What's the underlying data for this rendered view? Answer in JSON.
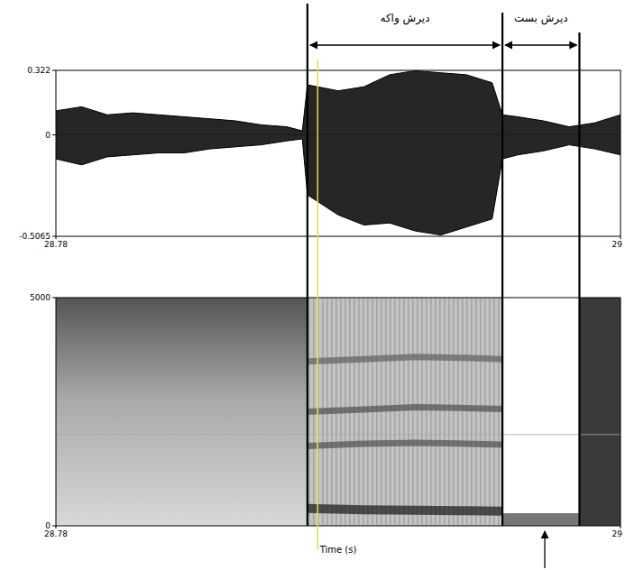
{
  "chart_data": [
    {
      "type": "waveform",
      "xlim": [
        28.78,
        29
      ],
      "xticks": [
        28.78,
        29
      ],
      "ylim": [
        -0.5065,
        0.322
      ],
      "yticks": [
        -0.5065,
        0,
        0.322
      ],
      "x": [
        28.78,
        28.79,
        28.8,
        28.81,
        28.82,
        28.83,
        28.84,
        28.85,
        28.86,
        28.87,
        28.876,
        28.878,
        28.89,
        28.9,
        28.91,
        28.92,
        28.93,
        28.94,
        28.95,
        28.954,
        28.96,
        28.97,
        28.98,
        28.99,
        29
      ],
      "series": [
        {
          "color": "#000000",
          "values": [
            0.12,
            0.14,
            0.1,
            0.11,
            0.1,
            0.09,
            0.08,
            0.07,
            0.05,
            0.04,
            0.02,
            0.25,
            0.22,
            0.24,
            0.3,
            0.32,
            0.31,
            0.3,
            0.26,
            0.1,
            0.09,
            0.07,
            0.04,
            0.06,
            0.1
          ]
        },
        {
          "color": "#000000",
          "values": [
            -0.12,
            -0.15,
            -0.11,
            -0.1,
            -0.09,
            -0.09,
            -0.07,
            -0.06,
            -0.05,
            -0.03,
            -0.02,
            -0.3,
            -0.4,
            -0.45,
            -0.44,
            -0.48,
            -0.5,
            -0.46,
            -0.42,
            -0.12,
            -0.1,
            -0.08,
            -0.05,
            -0.07,
            -0.1
          ]
        }
      ],
      "annotations": [
        {
          "text": "دیرش واکه",
          "x": [
            28.878,
            28.954
          ]
        },
        {
          "text": "دیرش بست",
          "x": [
            28.954,
            28.984
          ]
        }
      ],
      "cursor": {
        "x": 28.882,
        "color": "#e6e04a"
      }
    },
    {
      "type": "spectrogram",
      "x_label": "Time (s)",
      "xlim": [
        28.78,
        29
      ],
      "xticks": [
        28.78,
        29
      ],
      "ylim": [
        0,
        5000
      ],
      "yticks": [
        0,
        5000
      ],
      "x": [
        28.878,
        28.9,
        28.92,
        28.94,
        28.954
      ],
      "series": [
        {
          "color": "#222222",
          "values": [
            380,
            350,
            340,
            330,
            320
          ]
        },
        {
          "color": "#555555",
          "values": [
            1750,
            1800,
            1820,
            1800,
            1780
          ]
        },
        {
          "color": "#555555",
          "values": [
            2500,
            2550,
            2600,
            2580,
            2560
          ]
        },
        {
          "color": "#666666",
          "values": [
            3600,
            3650,
            3700,
            3680,
            3650
          ]
        }
      ]
    }
  ]
}
